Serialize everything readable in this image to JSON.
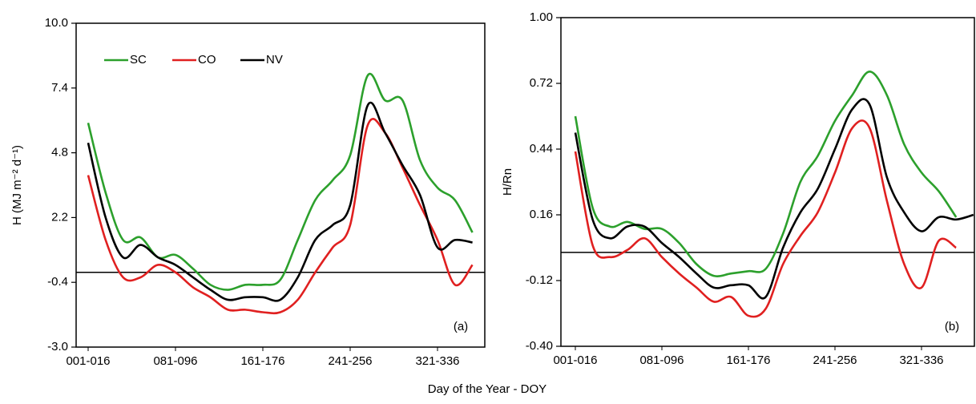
{
  "chart_data": [
    {
      "type": "line",
      "y_label": "H (MJ m⁻² d⁻¹)",
      "annotation": "(a)",
      "legend": "upper-left",
      "categories": [
        "001-016",
        null,
        null,
        null,
        null,
        "081-096",
        null,
        null,
        null,
        null,
        "161-176",
        null,
        null,
        null,
        null,
        "241-256",
        null,
        null,
        null,
        null,
        "321-336",
        null,
        null
      ],
      "ylim": [
        -3,
        10
      ],
      "yticks": [
        {
          "value": -3,
          "label": "-3.0"
        },
        -0.4,
        2.2,
        4.8,
        7.4,
        {
          "value": 10,
          "label": "10.0"
        }
      ],
      "series": [
        {
          "name": "SC",
          "color": "#2ca02c",
          "values": [
            6.0,
            3.2,
            1.3,
            1.4,
            0.6,
            0.7,
            0.15,
            -0.5,
            -0.7,
            -0.5,
            -0.5,
            -0.3,
            1.3,
            2.9,
            3.7,
            4.7,
            7.9,
            6.9,
            6.9,
            4.5,
            3.4,
            2.9,
            1.6
          ]
        },
        {
          "name": "CO",
          "color": "#e02020",
          "values": [
            3.9,
            1.3,
            -0.2,
            -0.2,
            0.3,
            0.0,
            -0.6,
            -1.0,
            -1.5,
            -1.5,
            -1.6,
            -1.6,
            -1.1,
            0.0,
            1.0,
            1.9,
            5.9,
            5.6,
            4.2,
            2.7,
            1.3,
            -0.5,
            0.3
          ]
        },
        {
          "name": "NV",
          "color": "#000000",
          "values": [
            5.2,
            2.2,
            0.6,
            1.1,
            0.6,
            0.3,
            -0.2,
            -0.7,
            -1.1,
            -1.0,
            -1.0,
            -1.1,
            -0.2,
            1.3,
            1.9,
            2.7,
            6.7,
            5.6,
            4.3,
            3.1,
            1.0,
            1.3,
            1.2
          ]
        }
      ]
    },
    {
      "type": "line",
      "y_label": "H/Rn",
      "annotation": "(b)",
      "categories": [
        "001-016",
        null,
        null,
        null,
        null,
        "081-096",
        null,
        null,
        null,
        null,
        "161-176",
        null,
        null,
        null,
        null,
        "241-256",
        null,
        null,
        null,
        null,
        "321-336",
        null,
        null,
        null
      ],
      "ylim": [
        -0.4,
        1
      ],
      "yticks": [
        {
          "value": -0.4,
          "label": "-0.40"
        },
        -0.12,
        0.16,
        0.44,
        0.72,
        {
          "value": 1,
          "label": "1.00"
        }
      ],
      "series": [
        {
          "color": "#2ca02c",
          "values": [
            0.58,
            0.19,
            0.11,
            0.13,
            0.1,
            0.1,
            0.04,
            -0.05,
            -0.1,
            -0.09,
            -0.08,
            -0.07,
            0.08,
            0.3,
            0.41,
            0.56,
            0.67,
            0.77,
            0.67,
            0.46,
            0.34,
            0.26,
            0.15,
            null
          ]
        },
        {
          "color": "#e02020",
          "values": [
            0.43,
            0.03,
            -0.02,
            0.01,
            0.06,
            -0.02,
            -0.09,
            -0.15,
            -0.21,
            -0.19,
            -0.27,
            -0.24,
            -0.05,
            0.07,
            0.17,
            0.34,
            0.53,
            0.53,
            0.22,
            -0.05,
            -0.15,
            0.05,
            0.02,
            null
          ]
        },
        {
          "color": "#000000",
          "values": [
            0.51,
            0.14,
            0.06,
            0.11,
            0.11,
            0.04,
            -0.02,
            -0.09,
            -0.15,
            -0.14,
            -0.14,
            -0.19,
            0.02,
            0.17,
            0.27,
            0.44,
            0.61,
            0.63,
            0.32,
            0.17,
            0.09,
            0.15,
            0.14,
            0.16
          ]
        }
      ]
    }
  ],
  "x_label": "Day of the Year - DOY"
}
